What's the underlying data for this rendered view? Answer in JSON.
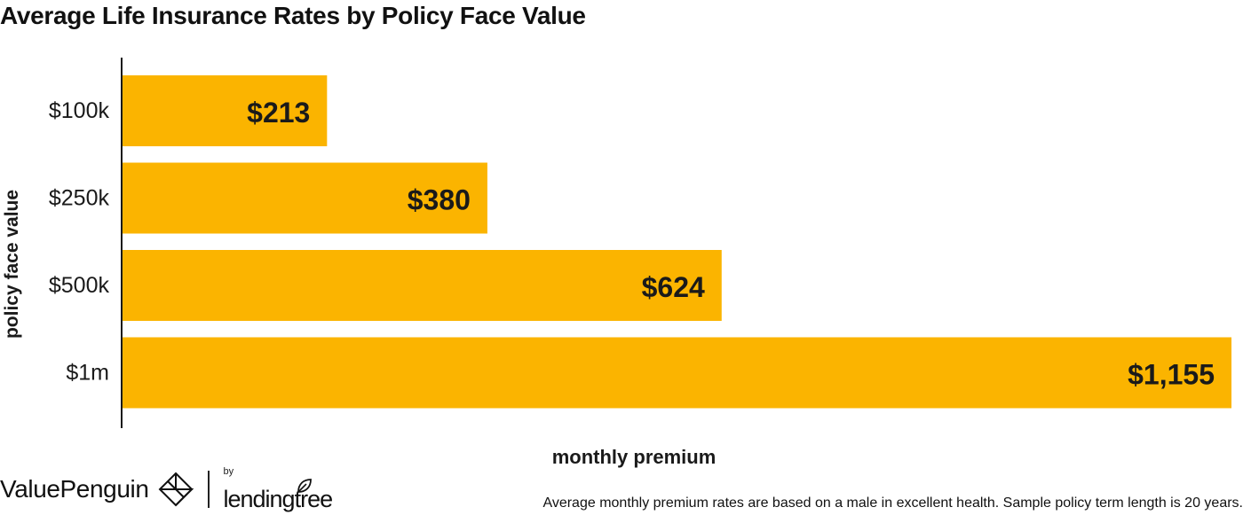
{
  "chart_data": {
    "type": "bar",
    "orientation": "horizontal",
    "title": "Average Life Insurance Rates by Policy Face Value",
    "xlabel": "monthly premium",
    "ylabel": "policy face value",
    "categories": [
      "$100k",
      "$250k",
      "$500k",
      "$1m"
    ],
    "values": [
      213,
      380,
      624,
      1155
    ],
    "value_labels": [
      "$213",
      "$380",
      "$624",
      "$1,155"
    ],
    "xlim": [
      0,
      1155
    ],
    "grid": false,
    "bar_color": "#FBB400",
    "label_color": "#1a1a1a",
    "axis_color": "#1a1a1a"
  },
  "branding": {
    "left_logo": "ValuePenguin",
    "by": "by",
    "right_logo": "lendingtree",
    "left_logo_icon": "valuepenguin-mark-icon",
    "right_logo_icon": "leaf-icon"
  },
  "footnote": "Average monthly premium rates are based on a male in excellent health. Sample policy term length is 20 years."
}
